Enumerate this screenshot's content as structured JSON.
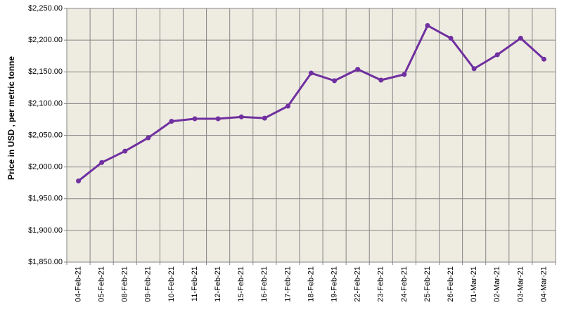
{
  "chart_data": {
    "type": "line",
    "y_label": "Price in USD , per metric tonne",
    "categories": [
      "04-Feb-21",
      "05-Feb-21",
      "08-Feb-21",
      "09-Feb-21",
      "10-Feb-21",
      "11-Feb-21",
      "12-Feb-21",
      "15-Feb-21",
      "16-Feb-21",
      "17-Feb-21",
      "18-Feb-21",
      "19-Feb-21",
      "22-Feb-21",
      "23-Feb-21",
      "24-Feb-21",
      "25-Feb-21",
      "26-Feb-21",
      "01-Mar-21",
      "02-Mar-21",
      "03-Mar-21",
      "04-Mar-21"
    ],
    "values": [
      1978,
      2007,
      2025,
      2046,
      2072,
      2076,
      2076,
      2079,
      2077,
      2096,
      2148,
      2136,
      2154,
      2137,
      2146,
      2223,
      2203,
      2155,
      2177,
      2203,
      2170
    ],
    "color": "#7030a0",
    "ylim": [
      1850,
      2250
    ],
    "yticks": [
      {
        "value": 1850,
        "label": "$1,850.00"
      },
      {
        "value": 1900,
        "label": "$1,900.00"
      },
      {
        "value": 1950,
        "label": "$1,950.00"
      },
      {
        "value": 2000,
        "label": "$2,000.00"
      },
      {
        "value": 2050,
        "label": "$2,050.00"
      },
      {
        "value": 2100,
        "label": "$2,100.00"
      },
      {
        "value": 2150,
        "label": "$2,150.00"
      },
      {
        "value": 2200,
        "label": "$2,200.00"
      },
      {
        "value": 2250,
        "label": "$2,250.00"
      }
    ],
    "grid": true
  }
}
